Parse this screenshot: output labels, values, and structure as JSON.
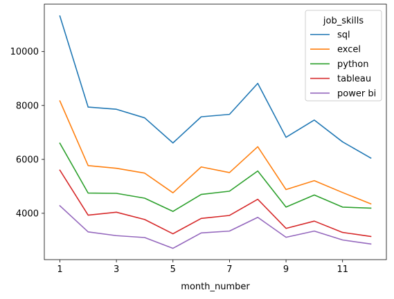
{
  "chart_data": {
    "type": "line",
    "x": [
      1,
      2,
      3,
      4,
      5,
      6,
      7,
      8,
      9,
      10,
      11,
      12
    ],
    "xticks": [
      1,
      3,
      5,
      7,
      9,
      11
    ],
    "yticks": [
      4000,
      6000,
      8000,
      10000
    ],
    "xlim": [
      0.45,
      12.55
    ],
    "ylim": [
      2280,
      11760
    ],
    "xlabel": "month_number",
    "ylabel": "",
    "title": "",
    "grid": false,
    "legend": {
      "title": "job_skills",
      "placement": "top-right"
    },
    "series": [
      {
        "name": "sql",
        "color": "#1f77b4",
        "values": [
          11320,
          7940,
          7860,
          7540,
          6610,
          7580,
          7670,
          8820,
          6820,
          7460,
          6650,
          6050
        ]
      },
      {
        "name": "excel",
        "color": "#ff7f0e",
        "values": [
          8170,
          5770,
          5670,
          5490,
          4760,
          5720,
          5510,
          6470,
          4880,
          5210,
          4770,
          4350
        ]
      },
      {
        "name": "python",
        "color": "#2ca02c",
        "values": [
          6600,
          4750,
          4740,
          4560,
          4070,
          4700,
          4820,
          5570,
          4230,
          4680,
          4230,
          4190
        ]
      },
      {
        "name": "tableau",
        "color": "#d62728",
        "values": [
          5600,
          3930,
          4040,
          3770,
          3240,
          3810,
          3920,
          4520,
          3440,
          3710,
          3290,
          3140
        ]
      },
      {
        "name": "power bi",
        "color": "#9467bd",
        "values": [
          4280,
          3310,
          3170,
          3100,
          2700,
          3270,
          3340,
          3850,
          3110,
          3340,
          3010,
          2860
        ]
      }
    ]
  }
}
